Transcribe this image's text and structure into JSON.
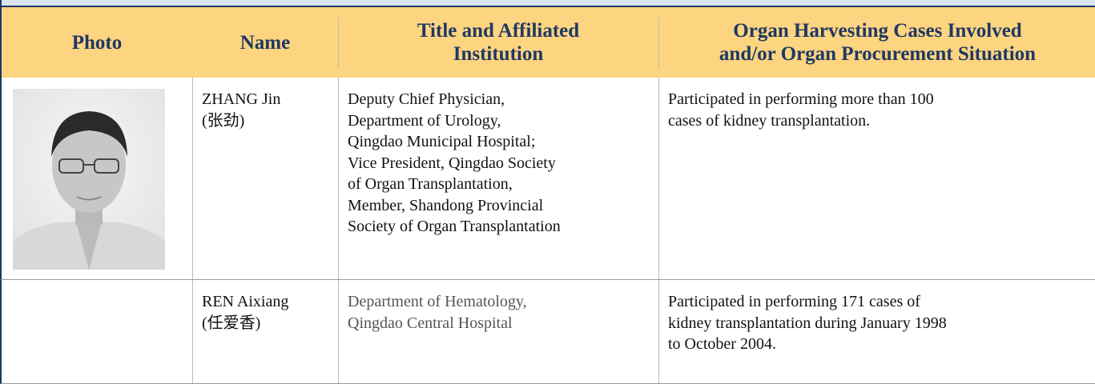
{
  "table": {
    "headers": [
      [
        "Photo"
      ],
      [
        "Name"
      ],
      [
        "Title and Affiliated",
        "Institution"
      ],
      [
        "Organ Harvesting Cases Involved",
        "and/or Organ Procurement Situation"
      ]
    ],
    "rows": [
      {
        "name": [
          "ZHANG Jin",
          "(张劲)"
        ],
        "title": [
          "Deputy Chief Physician,",
          "Department of Urology,",
          "Qingdao Municipal Hospital;",
          "Vice President, Qingdao Society",
          "of Organ Transplantation,",
          "Member, Shandong Provincial",
          "Society of Organ Transplantation"
        ],
        "cases": [
          "Participated in performing more than 100",
          "cases of kidney transplantation."
        ]
      },
      {
        "name": [
          "REN Aixiang",
          "(任爱香)"
        ],
        "title": [
          "Department of Hematology,",
          "Qingdao Central Hospital"
        ],
        "cases": [
          "Participated in performing 171 cases of",
          "kidney transplantation during January 1998",
          "to October 2004."
        ]
      }
    ]
  }
}
